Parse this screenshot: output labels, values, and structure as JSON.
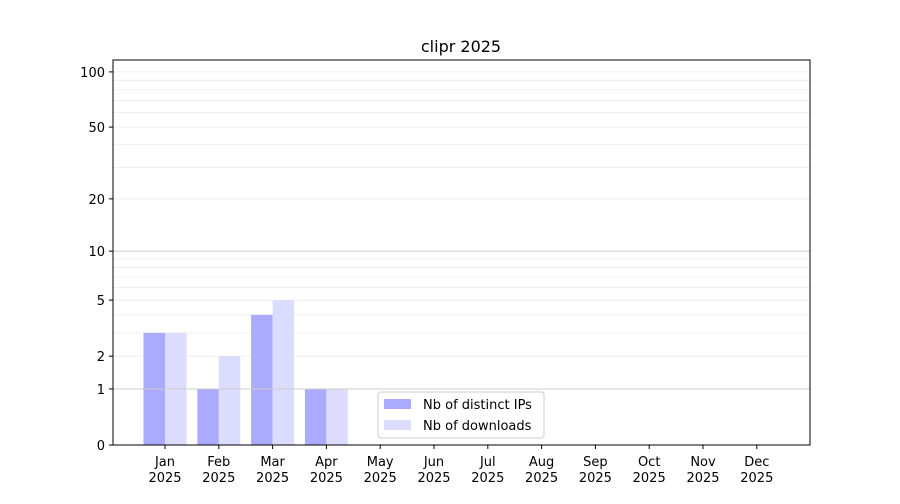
{
  "chart_data": {
    "type": "bar",
    "title": "clipr 2025",
    "xlabel": "",
    "ylabel": "",
    "y_scale": "log(1+y)",
    "ylim": [
      0,
      116
    ],
    "y_ticks": [
      0,
      1,
      2,
      5,
      10,
      20,
      50,
      100
    ],
    "y_tick_labels": [
      "0",
      "1",
      "2",
      "5",
      "10",
      "20",
      "50",
      "100"
    ],
    "grid": true,
    "legend_position": "lower center",
    "categories": [
      "Jan\n2025",
      "Feb\n2025",
      "Mar\n2025",
      "Apr\n2025",
      "May\n2025",
      "Jun\n2025",
      "Jul\n2025",
      "Aug\n2025",
      "Sep\n2025",
      "Oct\n2025",
      "Nov\n2025",
      "Dec\n2025"
    ],
    "series": [
      {
        "name": "Nb of distinct IPs",
        "color": "#aaaaff",
        "values": [
          3,
          1,
          4,
          1,
          0,
          0,
          0,
          0,
          0,
          0,
          0,
          0
        ]
      },
      {
        "name": "Nb of downloads",
        "color": "#dcdcff",
        "values": [
          3,
          2,
          5,
          1,
          0,
          0,
          0,
          0,
          0,
          0,
          0,
          0
        ]
      }
    ]
  }
}
